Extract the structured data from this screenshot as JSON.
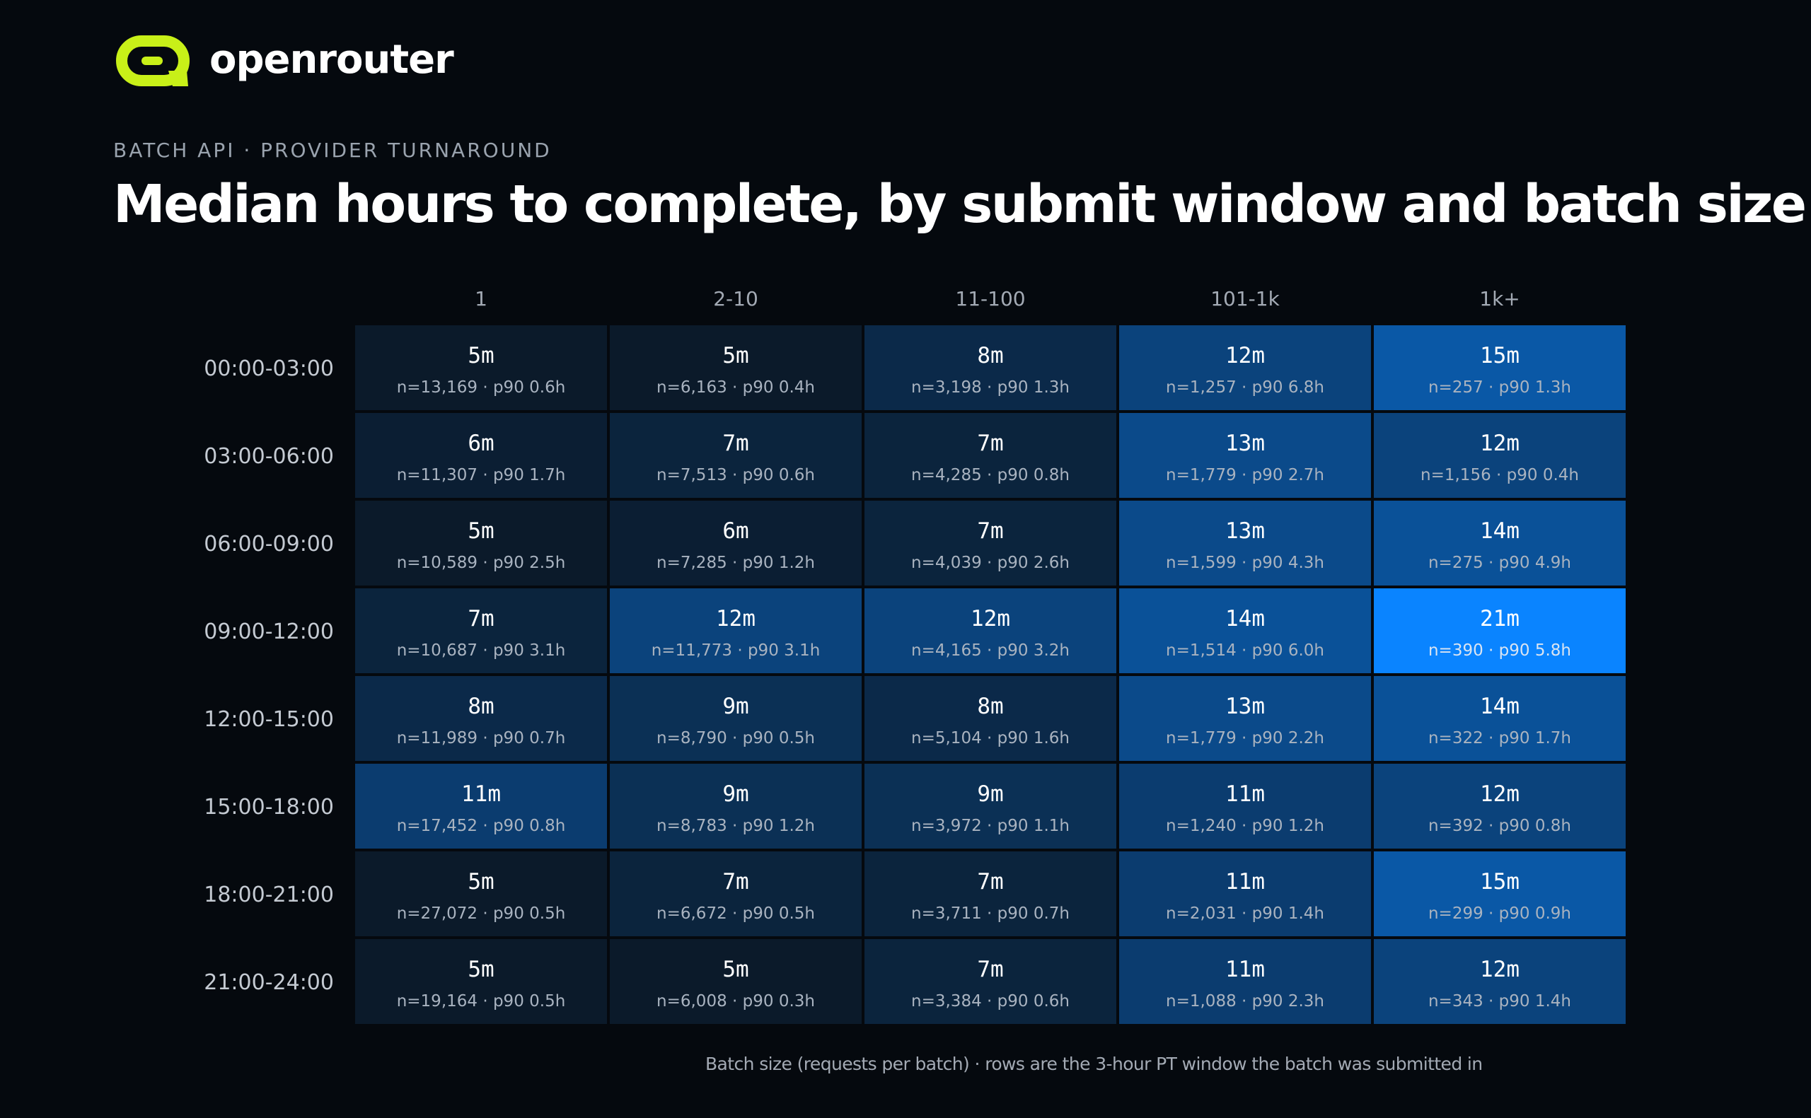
{
  "brand": {
    "name": "openrouter",
    "logo_icon": "openrouter-logo-icon",
    "accent_color": "#c8f018"
  },
  "header": {
    "eyebrow": "BATCH API · PROVIDER TURNAROUND",
    "title": "Median hours to complete, by submit window and batch size"
  },
  "footnote": "Batch size (requests per batch) · rows are the 3-hour PT window the batch was submitted in",
  "chart_data": {
    "type": "heatmap",
    "title": "Median hours to complete, by submit window and batch size",
    "xlabel": "Batch size (requests per batch)",
    "ylabel": "",
    "columns": [
      "1",
      "2-10",
      "11-100",
      "101-1k",
      "1k+"
    ],
    "rows": [
      "00:00-03:00",
      "03:00-06:00",
      "06:00-09:00",
      "09:00-12:00",
      "12:00-15:00",
      "15:00-18:00",
      "18:00-21:00",
      "21:00-24:00"
    ],
    "color_scale": {
      "low": "#0b1a2a",
      "high": "#0a84ff"
    },
    "cells": [
      [
        {
          "value": "5m",
          "minutes": 5,
          "n": "13,169",
          "p90": "0.6h"
        },
        {
          "value": "5m",
          "minutes": 5,
          "n": "6,163",
          "p90": "0.4h"
        },
        {
          "value": "8m",
          "minutes": 8,
          "n": "3,198",
          "p90": "1.3h"
        },
        {
          "value": "12m",
          "minutes": 12,
          "n": "1,257",
          "p90": "6.8h"
        },
        {
          "value": "15m",
          "minutes": 15,
          "n": "257",
          "p90": "1.3h"
        }
      ],
      [
        {
          "value": "6m",
          "minutes": 6,
          "n": "11,307",
          "p90": "1.7h"
        },
        {
          "value": "7m",
          "minutes": 7,
          "n": "7,513",
          "p90": "0.6h"
        },
        {
          "value": "7m",
          "minutes": 7,
          "n": "4,285",
          "p90": "0.8h"
        },
        {
          "value": "13m",
          "minutes": 13,
          "n": "1,779",
          "p90": "2.7h"
        },
        {
          "value": "12m",
          "minutes": 12,
          "n": "1,156",
          "p90": "0.4h"
        }
      ],
      [
        {
          "value": "5m",
          "minutes": 5,
          "n": "10,589",
          "p90": "2.5h"
        },
        {
          "value": "6m",
          "minutes": 6,
          "n": "7,285",
          "p90": "1.2h"
        },
        {
          "value": "7m",
          "minutes": 7,
          "n": "4,039",
          "p90": "2.6h"
        },
        {
          "value": "13m",
          "minutes": 13,
          "n": "1,599",
          "p90": "4.3h"
        },
        {
          "value": "14m",
          "minutes": 14,
          "n": "275",
          "p90": "4.9h"
        }
      ],
      [
        {
          "value": "7m",
          "minutes": 7,
          "n": "10,687",
          "p90": "3.1h"
        },
        {
          "value": "12m",
          "minutes": 12,
          "n": "11,773",
          "p90": "3.1h"
        },
        {
          "value": "12m",
          "minutes": 12,
          "n": "4,165",
          "p90": "3.2h"
        },
        {
          "value": "14m",
          "minutes": 14,
          "n": "1,514",
          "p90": "6.0h"
        },
        {
          "value": "21m",
          "minutes": 21,
          "n": "390",
          "p90": "5.8h"
        }
      ],
      [
        {
          "value": "8m",
          "minutes": 8,
          "n": "11,989",
          "p90": "0.7h"
        },
        {
          "value": "9m",
          "minutes": 9,
          "n": "8,790",
          "p90": "0.5h"
        },
        {
          "value": "8m",
          "minutes": 8,
          "n": "5,104",
          "p90": "1.6h"
        },
        {
          "value": "13m",
          "minutes": 13,
          "n": "1,779",
          "p90": "2.2h"
        },
        {
          "value": "14m",
          "minutes": 14,
          "n": "322",
          "p90": "1.7h"
        }
      ],
      [
        {
          "value": "11m",
          "minutes": 11,
          "n": "17,452",
          "p90": "0.8h"
        },
        {
          "value": "9m",
          "minutes": 9,
          "n": "8,783",
          "p90": "1.2h"
        },
        {
          "value": "9m",
          "minutes": 9,
          "n": "3,972",
          "p90": "1.1h"
        },
        {
          "value": "11m",
          "minutes": 11,
          "n": "1,240",
          "p90": "1.2h"
        },
        {
          "value": "12m",
          "minutes": 12,
          "n": "392",
          "p90": "0.8h"
        }
      ],
      [
        {
          "value": "5m",
          "minutes": 5,
          "n": "27,072",
          "p90": "0.5h"
        },
        {
          "value": "7m",
          "minutes": 7,
          "n": "6,672",
          "p90": "0.5h"
        },
        {
          "value": "7m",
          "minutes": 7,
          "n": "3,711",
          "p90": "0.7h"
        },
        {
          "value": "11m",
          "minutes": 11,
          "n": "2,031",
          "p90": "1.4h"
        },
        {
          "value": "15m",
          "minutes": 15,
          "n": "299",
          "p90": "0.9h"
        }
      ],
      [
        {
          "value": "5m",
          "minutes": 5,
          "n": "19,164",
          "p90": "0.5h"
        },
        {
          "value": "5m",
          "minutes": 5,
          "n": "6,008",
          "p90": "0.3h"
        },
        {
          "value": "7m",
          "minutes": 7,
          "n": "3,384",
          "p90": "0.6h"
        },
        {
          "value": "11m",
          "minutes": 11,
          "n": "1,088",
          "p90": "2.3h"
        },
        {
          "value": "12m",
          "minutes": 12,
          "n": "343",
          "p90": "1.4h"
        }
      ]
    ]
  }
}
